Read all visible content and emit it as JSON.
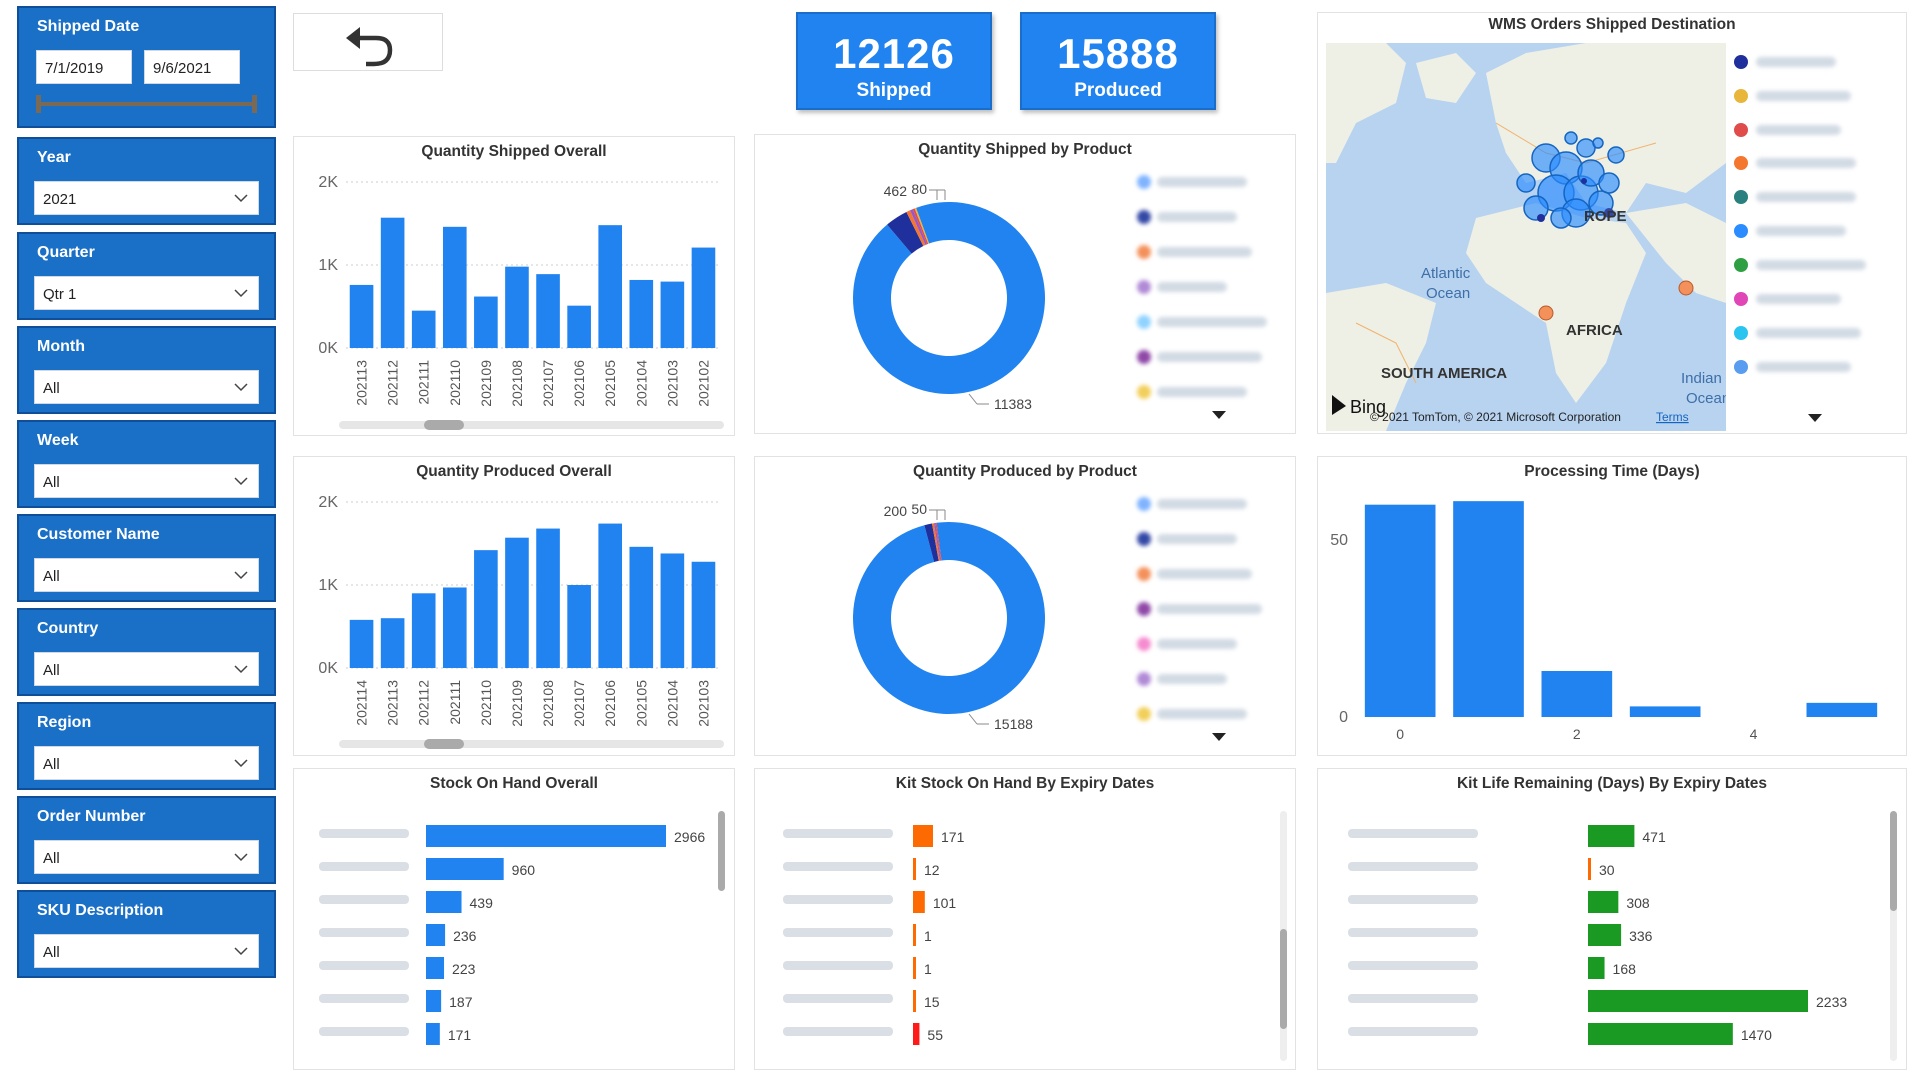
{
  "slicers": {
    "shipped_date": {
      "title": "Shipped Date",
      "from": "7/1/2019",
      "to": "9/6/2021"
    },
    "year": {
      "title": "Year",
      "value": "2021"
    },
    "quarter": {
      "title": "Quarter",
      "value": "Qtr 1"
    },
    "month": {
      "title": "Month",
      "value": "All"
    },
    "week": {
      "title": "Week",
      "value": "All"
    },
    "customer": {
      "title": "Customer Name",
      "value": "All"
    },
    "country": {
      "title": "Country",
      "value": "All"
    },
    "region": {
      "title": "Region",
      "value": "All"
    },
    "order": {
      "title": "Order Number",
      "value": "All"
    },
    "sku": {
      "title": "SKU Description",
      "value": "All"
    }
  },
  "kpis": {
    "shipped": {
      "value": "12126",
      "label": "Shipped"
    },
    "produced": {
      "value": "15888",
      "label": "Produced"
    }
  },
  "colors": {
    "accent": "#2183f0",
    "slicer": "#1a6fc6",
    "orange": "#fd6a02",
    "red": "#ff1a1a",
    "green": "#1a9a22"
  },
  "map": {
    "title": "WMS Orders Shipped Destination",
    "labels": {
      "ocean1": "Atlantic",
      "ocean2": "Ocean",
      "europe": "ROPE",
      "africa": "AFRICA",
      "samerica": "SOUTH AMERICA",
      "indian1": "Indian",
      "indian2": "Ocean"
    },
    "attribution": "© 2021 TomTom, © 2021 Microsoft Corporation",
    "terms": "Terms",
    "bing": "Bing"
  },
  "chart_data": [
    {
      "type": "bar",
      "title": "Quantity Shipped Overall",
      "categories": [
        "202113",
        "202112",
        "202111",
        "202110",
        "202109",
        "202108",
        "202107",
        "202106",
        "202105",
        "202104",
        "202103",
        "202102"
      ],
      "values": [
        760,
        1570,
        450,
        1460,
        620,
        980,
        890,
        510,
        1480,
        820,
        800,
        1210
      ],
      "yticks": [
        "2K",
        "1K",
        "0K"
      ],
      "ylim": [
        0,
        2000
      ]
    },
    {
      "type": "bar",
      "title": "Quantity Produced Overall",
      "categories": [
        "202114",
        "202113",
        "202112",
        "202111",
        "202110",
        "202109",
        "202108",
        "202107",
        "202106",
        "202105",
        "202104",
        "202103"
      ],
      "values": [
        580,
        600,
        900,
        970,
        1420,
        1570,
        1680,
        1000,
        1740,
        1460,
        1380,
        1280
      ],
      "yticks": [
        "2K",
        "1K",
        "0K"
      ],
      "ylim": [
        0,
        2000
      ]
    },
    {
      "type": "pie",
      "title": "Quantity Shipped by Product",
      "slices": [
        11383,
        462,
        80,
        60,
        40,
        30
      ],
      "slice_colors": [
        "#2183f0",
        "#1f2f9c",
        "#f4762f",
        "#9a57c6",
        "#e04b4b",
        "#e8b63a"
      ],
      "labels": [
        "11383",
        "462",
        "80"
      ]
    },
    {
      "type": "pie",
      "title": "Quantity Produced by Product",
      "slices": [
        15188,
        200,
        50,
        40,
        30
      ],
      "slice_colors": [
        "#2183f0",
        "#1f2f9c",
        "#f4762f",
        "#9a57c6",
        "#e04b4b"
      ],
      "labels": [
        "15188",
        "200",
        "50"
      ]
    },
    {
      "type": "bar",
      "title": "Processing Time (Days)",
      "x": [
        0,
        1,
        2,
        3,
        4,
        5
      ],
      "values": [
        60,
        61,
        13,
        3,
        0,
        4
      ],
      "xticks": [
        "0",
        "2",
        "4"
      ],
      "yticks": [
        "50",
        "0"
      ],
      "ylim": [
        0,
        65
      ]
    },
    {
      "type": "bar",
      "title": "Stock On Hand Overall",
      "orientation": "horizontal",
      "values": [
        2966,
        960,
        439,
        236,
        223,
        187,
        171
      ]
    },
    {
      "type": "bar",
      "title": "Kit Stock On Hand By Expiry Dates",
      "orientation": "horizontal",
      "values": [
        171,
        12,
        101,
        1,
        1,
        15,
        55
      ]
    },
    {
      "type": "bar",
      "title": "Kit Life Remaining (Days) By Expiry Dates",
      "orientation": "horizontal",
      "values": [
        471,
        30,
        308,
        336,
        168,
        2233,
        1470
      ]
    }
  ]
}
